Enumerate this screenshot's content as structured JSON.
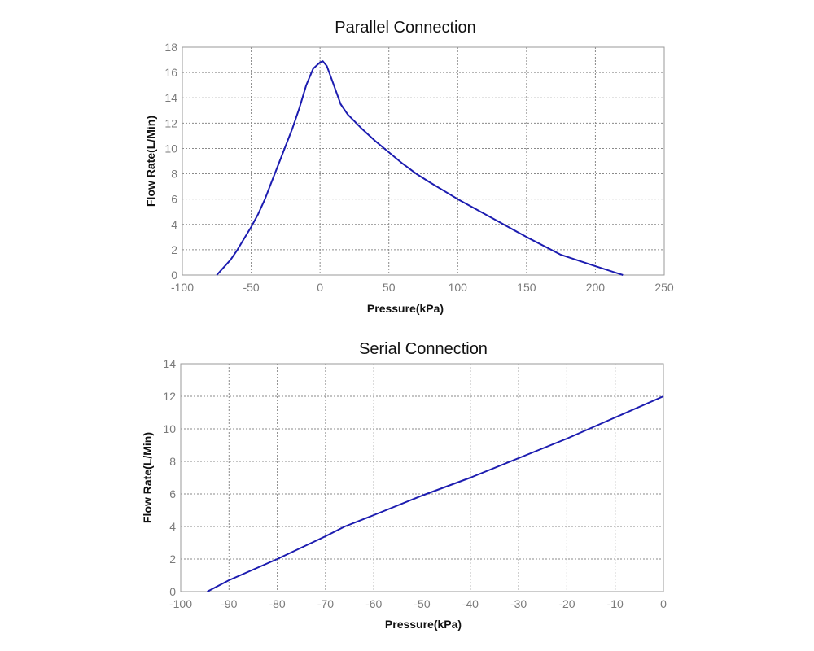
{
  "chart_data": [
    {
      "type": "line",
      "title": "Parallel Connection",
      "xlabel": "Pressure(kPa)",
      "ylabel": "Flow Rate(L/Min)",
      "xlim": [
        -100,
        250
      ],
      "ylim": [
        0,
        18
      ],
      "xticks": [
        -100,
        -50,
        0,
        50,
        100,
        150,
        200,
        250
      ],
      "yticks": [
        0,
        2,
        4,
        6,
        8,
        10,
        12,
        14,
        16,
        18
      ],
      "grid": true,
      "line_color": "#1c1cb0",
      "series": [
        {
          "x": [
            -75,
            -70,
            -65,
            -60,
            -55,
            -50,
            -45,
            -40,
            -35,
            -30,
            -25,
            -20,
            -15,
            -10,
            -5,
            0,
            2,
            5,
            10,
            15,
            20,
            30,
            40,
            50,
            60,
            70,
            80,
            100,
            125,
            150,
            175,
            200,
            220
          ],
          "y": [
            0,
            0.6,
            1.2,
            2,
            2.9,
            3.8,
            4.8,
            6,
            7.4,
            8.8,
            10.2,
            11.6,
            13.2,
            15,
            16.3,
            16.8,
            16.9,
            16.5,
            15,
            13.5,
            12.7,
            11.6,
            10.6,
            9.7,
            8.8,
            8,
            7.3,
            6,
            4.5,
            3,
            1.6,
            0.7,
            0
          ]
        }
      ]
    },
    {
      "type": "line",
      "title": "Serial Connection",
      "xlabel": "Pressure(kPa)",
      "ylabel": "Flow Rate(L/Min)",
      "xlim": [
        -100,
        0
      ],
      "ylim": [
        0,
        14
      ],
      "xticks": [
        -100,
        -90,
        -80,
        -70,
        -60,
        -50,
        -40,
        -30,
        -20,
        -10,
        0
      ],
      "yticks": [
        0,
        2,
        4,
        6,
        8,
        10,
        12,
        14
      ],
      "grid": true,
      "line_color": "#1c1cb0",
      "series": [
        {
          "x": [
            -94.5,
            -90,
            -80,
            -70,
            -66,
            -60,
            -50,
            -40,
            -30,
            -20,
            -10,
            0
          ],
          "y": [
            0,
            0.7,
            2,
            3.4,
            4,
            4.7,
            5.9,
            7,
            8.2,
            9.4,
            10.7,
            12
          ]
        }
      ]
    }
  ]
}
